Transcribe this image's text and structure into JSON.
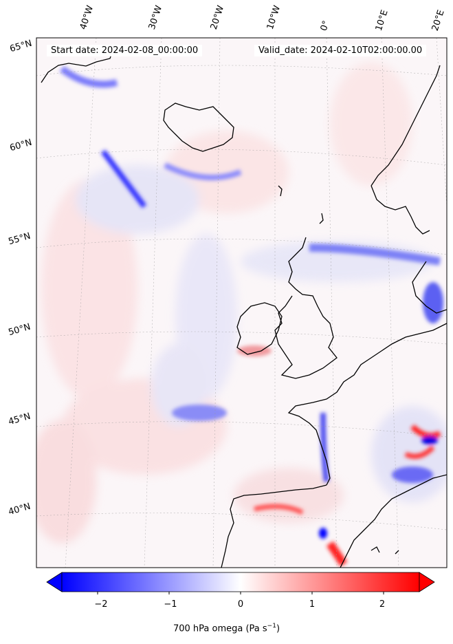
{
  "map": {
    "start_date_text": "Start date: 2024-02-08_00:00:00",
    "valid_date_text": "Valid_date: 2024-02-10T02:00:00.00",
    "longitude_labels": [
      "40°W",
      "30°W",
      "20°W",
      "10°W",
      "0°",
      "10°E",
      "20°E"
    ],
    "latitude_labels": [
      "65°N",
      "60°N",
      "55°N",
      "50°N",
      "45°N",
      "40°N"
    ],
    "field": "700 hPa omega",
    "colormap": "bwr",
    "colors": {
      "negative": "#0000ff",
      "zero": "#ffffff",
      "positive": "#ff0000",
      "coastline": "#000000"
    }
  },
  "colorbar": {
    "label": "700 hPa omega (Pa s",
    "label_unit_exponent": "−1",
    "label_close": ")",
    "range": [
      -2.5,
      2.5
    ],
    "ticks": [
      "−2",
      "−1",
      "0",
      "1",
      "2"
    ],
    "tick_values": [
      -2,
      -1,
      0,
      1,
      2
    ],
    "extend": "both"
  }
}
